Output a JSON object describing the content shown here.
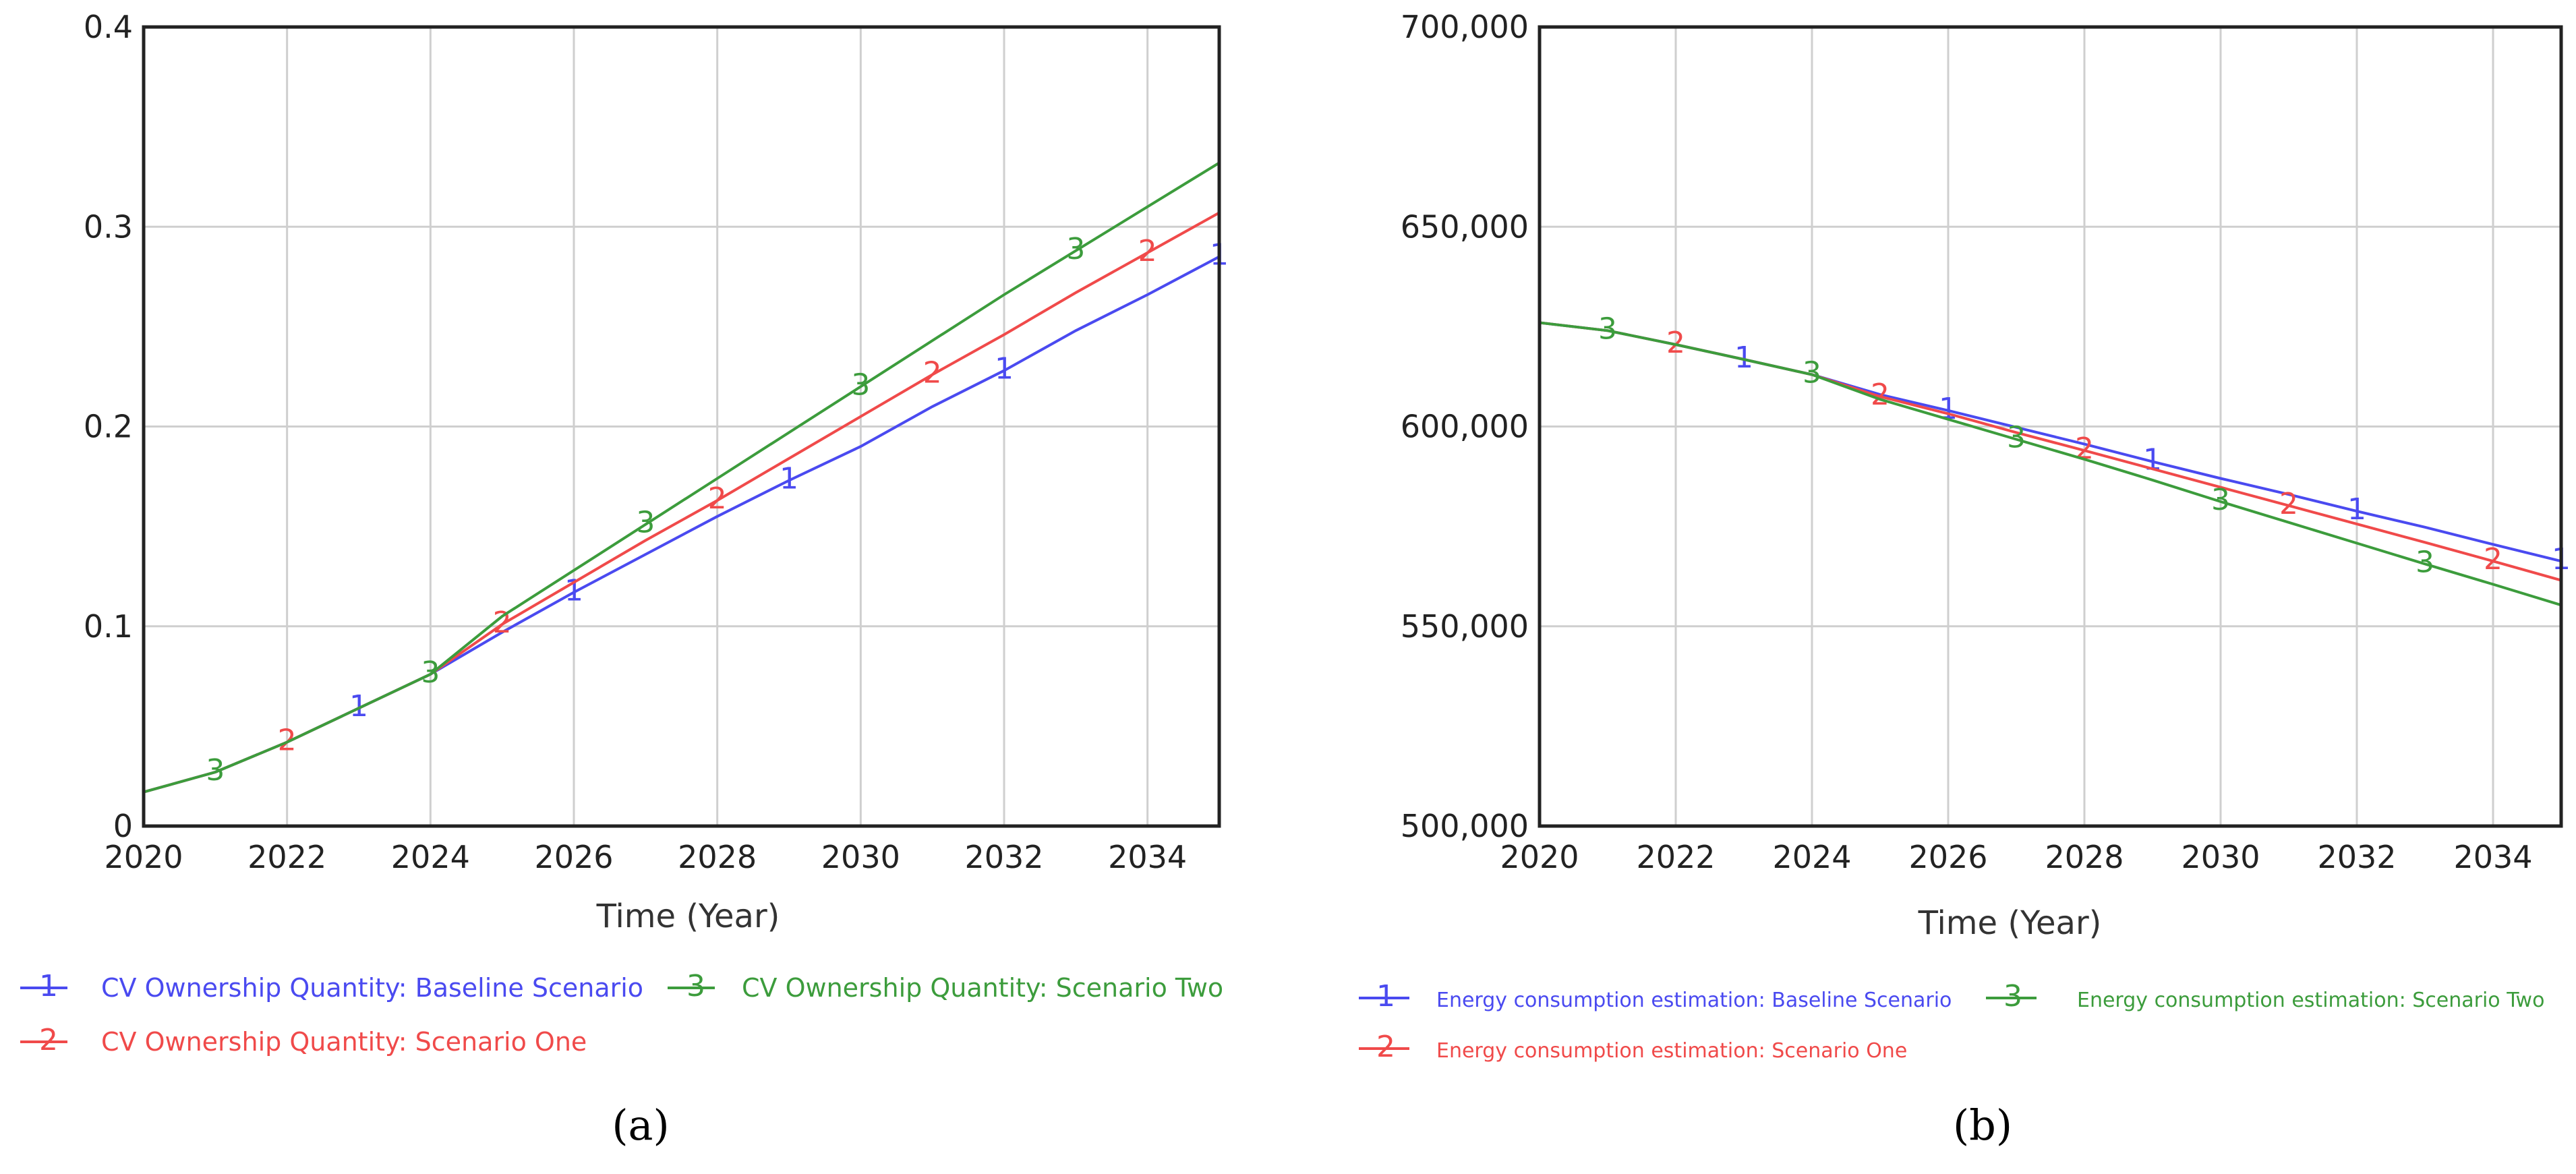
{
  "chart_data": [
    {
      "type": "line",
      "panel": "(a)",
      "title": "",
      "xlabel": "Time (Year)",
      "ylabel": "",
      "xlim": [
        2020,
        2035
      ],
      "ylim": [
        0,
        0.4
      ],
      "xticks": [
        "2020",
        "2022",
        "2024",
        "2026",
        "2028",
        "2030",
        "2032",
        "2034"
      ],
      "yticks": [
        "0",
        "0.1",
        "0.2",
        "0.3",
        "0.4"
      ],
      "grid": true,
      "legend_position": "bottom",
      "colors": {
        "s1": "#4a4af0",
        "s2": "#f04a4a",
        "s3": "#3c9c3c"
      },
      "series": [
        {
          "id": "1",
          "name": "CV Ownership Quantity: Baseline Scenario",
          "color": "#4a4af0",
          "x": [
            2020,
            2021,
            2022,
            2023,
            2024,
            2025,
            2026,
            2027,
            2028,
            2029,
            2030,
            2031,
            2032,
            2033,
            2034,
            2035
          ],
          "values": [
            0.017,
            0.027,
            0.042,
            0.059,
            0.076,
            0.097,
            0.117,
            0.136,
            0.155,
            0.173,
            0.19,
            0.21,
            0.228,
            0.248,
            0.266,
            0.285
          ],
          "markers": [
            2023,
            2026,
            2029,
            2032,
            2035
          ]
        },
        {
          "id": "2",
          "name": "CV Ownership Quantity: Scenario One",
          "color": "#f04a4a",
          "x": [
            2020,
            2021,
            2022,
            2023,
            2024,
            2025,
            2026,
            2027,
            2028,
            2029,
            2030,
            2031,
            2032,
            2033,
            2034,
            2035
          ],
          "values": [
            0.017,
            0.027,
            0.042,
            0.059,
            0.076,
            0.101,
            0.122,
            0.143,
            0.163,
            0.184,
            0.205,
            0.226,
            0.246,
            0.267,
            0.287,
            0.307
          ],
          "markers": [
            2022,
            2025,
            2028,
            2031,
            2034
          ]
        },
        {
          "id": "3",
          "name": "CV Ownership Quantity: Scenario Two",
          "color": "#3c9c3c",
          "x": [
            2020,
            2021,
            2022,
            2023,
            2024,
            2025,
            2026,
            2027,
            2028,
            2029,
            2030,
            2031,
            2032,
            2033,
            2034,
            2035
          ],
          "values": [
            0.017,
            0.027,
            0.042,
            0.059,
            0.076,
            0.105,
            0.128,
            0.151,
            0.174,
            0.197,
            0.22,
            0.243,
            0.266,
            0.288,
            0.31,
            0.332
          ],
          "markers": [
            2021,
            2024,
            2027,
            2030,
            2033
          ]
        }
      ]
    },
    {
      "type": "line",
      "panel": "(b)",
      "title": "",
      "xlabel": "Time (Year)",
      "ylabel": "",
      "xlim": [
        2020,
        2035
      ],
      "ylim": [
        500000,
        700000
      ],
      "xticks": [
        "2020",
        "2022",
        "2024",
        "2026",
        "2028",
        "2030",
        "2032",
        "2034"
      ],
      "yticks": [
        "500,000",
        "550,000",
        "600,000",
        "650,000",
        "700,000"
      ],
      "grid": true,
      "legend_position": "bottom",
      "series": [
        {
          "id": "1",
          "name": "Energy consumption estimation: Baseline Scenario",
          "color": "#4a4af0",
          "x": [
            2020,
            2021,
            2022,
            2023,
            2024,
            2025,
            2026,
            2027,
            2028,
            2029,
            2030,
            2031,
            2032,
            2033,
            2034,
            2035
          ],
          "values": [
            626000,
            624000,
            620500,
            616800,
            613000,
            608000,
            604000,
            599800,
            595600,
            591200,
            587000,
            583000,
            578800,
            574800,
            570500,
            566300
          ],
          "markers": [
            2023,
            2026,
            2029,
            2032,
            2035
          ]
        },
        {
          "id": "2",
          "name": "Energy consumption estimation: Scenario One",
          "color": "#f04a4a",
          "x": [
            2020,
            2021,
            2022,
            2023,
            2024,
            2025,
            2026,
            2027,
            2028,
            2029,
            2030,
            2031,
            2032,
            2033,
            2034,
            2035
          ],
          "values": [
            626000,
            624000,
            620500,
            616800,
            613000,
            607500,
            603200,
            598500,
            594000,
            589400,
            584800,
            580200,
            575600,
            571000,
            566300,
            561500
          ],
          "markers": [
            2022,
            2025,
            2028,
            2031,
            2034
          ]
        },
        {
          "id": "3",
          "name": "Energy consumption estimation: Scenario Two",
          "color": "#3c9c3c",
          "x": [
            2020,
            2021,
            2022,
            2023,
            2024,
            2025,
            2026,
            2027,
            2028,
            2029,
            2030,
            2031,
            2032,
            2033,
            2034,
            2035
          ],
          "values": [
            626000,
            624000,
            620500,
            616800,
            613000,
            606800,
            601800,
            596800,
            591800,
            586600,
            581200,
            576000,
            570800,
            565600,
            560500,
            555300
          ],
          "markers": [
            2021,
            2024,
            2027,
            2030,
            2033
          ]
        }
      ]
    }
  ]
}
